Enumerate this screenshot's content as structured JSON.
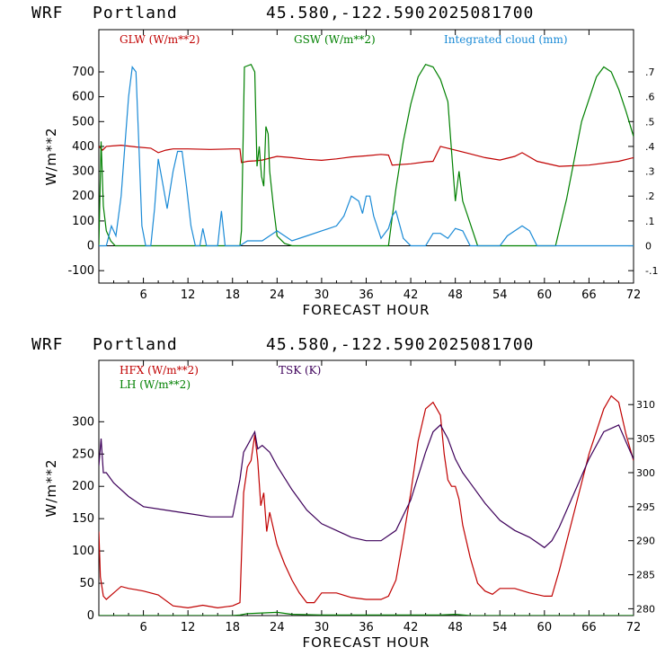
{
  "chart_data": [
    {
      "type": "line",
      "header": {
        "model": "WRF",
        "location": "Portland",
        "coords": "45.580,-122.590",
        "run": "2025081700"
      },
      "xlabel": "FORECAST HOUR",
      "ylabel": "W/m**2",
      "xlim": [
        0,
        72
      ],
      "ylim": [
        -150,
        870
      ],
      "xticks": [
        6,
        12,
        18,
        24,
        30,
        36,
        42,
        48,
        54,
        60,
        66,
        72
      ],
      "yticks": [
        -100,
        0,
        100,
        200,
        300,
        400,
        500,
        600,
        700
      ],
      "right_axis": {
        "ylim": [
          -0.15,
          0.87
        ],
        "tick_values": [
          -0.1,
          0,
          0.1,
          0.2,
          0.3,
          0.4,
          0.5,
          0.6,
          0.7
        ],
        "tick_labels": [
          "-.1",
          "0",
          ".1",
          ".2",
          ".3",
          ".4",
          ".5",
          ".6",
          ".7"
        ]
      },
      "series": [
        {
          "name": "GLW (W/m**2)",
          "color": "#c00000",
          "axis": "left",
          "x": [
            0,
            0.5,
            1,
            3,
            5,
            7,
            8,
            9,
            10,
            12,
            15,
            18,
            19,
            19.2,
            20,
            21,
            22,
            24,
            26,
            28,
            30,
            32,
            34,
            36,
            38,
            39,
            39.5,
            42,
            44,
            45,
            46,
            48,
            50,
            52,
            54,
            56,
            57,
            59,
            62,
            66,
            70,
            72
          ],
          "values": [
            400,
            385,
            400,
            405,
            398,
            393,
            375,
            385,
            390,
            390,
            388,
            390,
            390,
            335,
            340,
            342,
            345,
            360,
            355,
            348,
            344,
            350,
            358,
            362,
            368,
            365,
            325,
            330,
            338,
            340,
            400,
            385,
            370,
            355,
            345,
            360,
            375,
            340,
            320,
            325,
            340,
            355
          ]
        },
        {
          "name": "GSW (W/m**2)",
          "color": "#008000",
          "axis": "left",
          "x": [
            0,
            0.3,
            0.6,
            1,
            1.6,
            2.2,
            19,
            19.2,
            19.6,
            20.5,
            21,
            21.3,
            21.6,
            21.9,
            22.2,
            22.5,
            22.8,
            23,
            23.5,
            24,
            25,
            26,
            27,
            28,
            39,
            40,
            41,
            42,
            43,
            44,
            45,
            46,
            47,
            47.5,
            48,
            48.5,
            49,
            50,
            51,
            61.5,
            63,
            65,
            67,
            68,
            69,
            70,
            71,
            72
          ],
          "values": [
            0,
            420,
            160,
            60,
            20,
            0,
            0,
            60,
            720,
            730,
            700,
            320,
            400,
            280,
            240,
            480,
            450,
            300,
            160,
            40,
            10,
            0,
            0,
            0,
            0,
            230,
            420,
            570,
            680,
            730,
            720,
            670,
            580,
            380,
            180,
            300,
            180,
            90,
            0,
            0,
            190,
            500,
            680,
            720,
            700,
            630,
            540,
            440
          ]
        },
        {
          "name": "Integrated cloud (mm)",
          "color": "#1a8ad6",
          "axis": "right",
          "x": [
            0,
            1,
            1.7,
            2.3,
            3,
            3.5,
            4,
            4.5,
            5,
            5.4,
            5.8,
            6.3,
            7,
            7.5,
            8,
            8.6,
            9.2,
            10,
            10.6,
            11.2,
            11.8,
            12.4,
            13,
            13.6,
            14,
            14.5,
            16,
            16.5,
            17,
            19,
            20,
            22,
            24,
            26,
            28,
            30,
            31,
            32,
            33,
            34,
            35,
            35.5,
            36,
            36.5,
            37,
            38,
            39,
            39.5,
            40,
            41,
            42,
            44,
            45,
            46,
            47,
            48,
            49,
            50,
            52,
            54,
            55,
            56,
            57,
            58,
            59,
            72
          ],
          "values": [
            0,
            0,
            0.08,
            0.04,
            0.2,
            0.4,
            0.6,
            0.72,
            0.7,
            0.4,
            0.08,
            0,
            0,
            0.15,
            0.35,
            0.25,
            0.15,
            0.3,
            0.38,
            0.38,
            0.24,
            0.08,
            0,
            0,
            0.07,
            0,
            0,
            0.14,
            0,
            0,
            0.02,
            0.02,
            0.06,
            0.02,
            0.04,
            0.06,
            0.07,
            0.08,
            0.12,
            0.2,
            0.18,
            0.13,
            0.2,
            0.2,
            0.12,
            0.03,
            0.07,
            0.12,
            0.14,
            0.03,
            0,
            0,
            0.05,
            0.05,
            0.03,
            0.07,
            0.06,
            0,
            0,
            0,
            0.04,
            0.06,
            0.08,
            0.06,
            0,
            0
          ]
        }
      ]
    },
    {
      "type": "line",
      "header": {
        "model": "WRF",
        "location": "Portland",
        "coords": "45.580,-122.590",
        "run": "2025081700"
      },
      "xlabel": "FORECAST HOUR",
      "ylabel": "W/m**2",
      "xlim": [
        0,
        72
      ],
      "ylim": [
        0,
        395
      ],
      "xticks": [
        6,
        12,
        18,
        24,
        30,
        36,
        42,
        48,
        54,
        60,
        66,
        72
      ],
      "yticks": [
        0,
        50,
        100,
        150,
        200,
        250,
        300
      ],
      "right_axis": {
        "ylim": [
          279,
          316.5
        ],
        "tick_values": [
          280,
          285,
          290,
          295,
          300,
          305,
          310
        ],
        "tick_labels": [
          "280",
          "285",
          "290",
          "295",
          "300",
          "305",
          "310"
        ]
      },
      "series": [
        {
          "name": "HFX (W/m**2)",
          "color": "#c00000",
          "axis": "left",
          "x": [
            0,
            0.2,
            0.6,
            1,
            2,
            3,
            4,
            5,
            6,
            8,
            10,
            12,
            14,
            16,
            18,
            19,
            19.5,
            20,
            20.5,
            21,
            21.4,
            21.8,
            22.2,
            22.6,
            23,
            24,
            25,
            26,
            27,
            28,
            29,
            30,
            32,
            34,
            36,
            38,
            39,
            40,
            41,
            42,
            43,
            44,
            45,
            46,
            46.5,
            47,
            47.5,
            48,
            48.5,
            49,
            50,
            51,
            52,
            53,
            54,
            56,
            58,
            60,
            61,
            62,
            64,
            66,
            68,
            69,
            70,
            71,
            72
          ],
          "values": [
            130,
            60,
            30,
            25,
            35,
            45,
            42,
            40,
            38,
            32,
            15,
            12,
            16,
            12,
            15,
            20,
            190,
            230,
            240,
            280,
            240,
            170,
            190,
            130,
            160,
            110,
            80,
            55,
            35,
            20,
            20,
            35,
            35,
            28,
            25,
            25,
            30,
            55,
            120,
            190,
            270,
            320,
            330,
            310,
            250,
            210,
            200,
            200,
            180,
            140,
            90,
            50,
            38,
            33,
            42,
            42,
            35,
            30,
            30,
            70,
            160,
            250,
            320,
            340,
            330,
            280,
            240
          ]
        },
        {
          "name": "LH (W/m**2)",
          "color": "#008000",
          "axis": "left",
          "x": [
            0,
            18,
            19,
            20,
            22,
            24,
            26,
            30,
            36,
            42,
            46,
            48,
            50,
            72
          ],
          "values": [
            0,
            0,
            1,
            3,
            4,
            5,
            2,
            1,
            1,
            1,
            1,
            2,
            0,
            0
          ]
        },
        {
          "name": "TSK (K)",
          "color": "#3d005a",
          "axis": "right",
          "x": [
            0,
            0.3,
            0.6,
            1,
            2,
            4,
            6,
            9,
            12,
            15,
            18,
            19,
            19.5,
            20,
            21,
            21.4,
            22,
            23,
            24,
            26,
            28,
            30,
            32,
            34,
            36,
            38,
            40,
            42,
            44,
            45,
            46,
            47,
            48,
            49,
            50,
            52,
            54,
            56,
            58,
            60,
            61,
            62,
            64,
            66,
            68,
            70,
            71,
            72
          ],
          "values": [
            301,
            305,
            300,
            300,
            298.5,
            296.5,
            295,
            294.5,
            294,
            293.5,
            293.5,
            299,
            303,
            304,
            306,
            303.5,
            304,
            303,
            301,
            297.5,
            294.5,
            292.5,
            291.5,
            290.5,
            290,
            290,
            291.5,
            296,
            303,
            306,
            307,
            305,
            302,
            300,
            298.5,
            295.5,
            293,
            291.5,
            290.5,
            289,
            290,
            292,
            297,
            302,
            306,
            307,
            304.5,
            302
          ]
        }
      ]
    }
  ]
}
